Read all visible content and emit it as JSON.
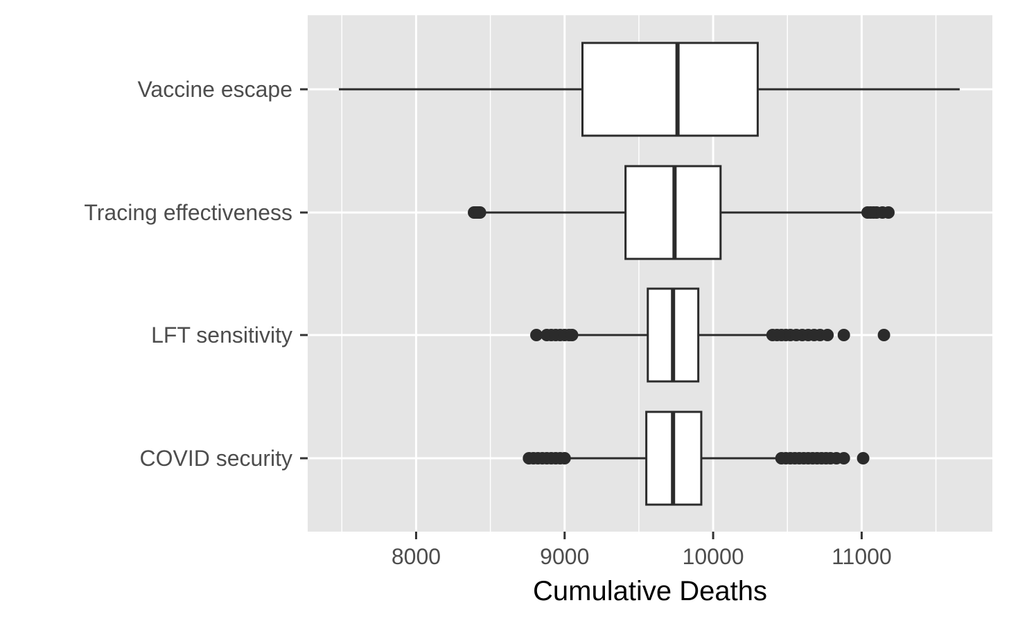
{
  "chart_data": {
    "type": "boxplot",
    "orientation": "horizontal",
    "xlabel": "Cumulative Deaths",
    "ylabel": "",
    "xlim": [
      7270,
      11880
    ],
    "x_ticks": [
      8000,
      9000,
      10000,
      11000
    ],
    "x_tick_labels": [
      "8000",
      "9000",
      "10000",
      "11000"
    ],
    "grid": true,
    "legend": "none",
    "colors": {
      "panel_background": "#e5e5e5",
      "grid_line": "#ffffff",
      "box_fill": "#ffffff",
      "box_stroke": "#2b2b2b",
      "outlier": "#2b2b2b"
    },
    "categories": [
      "Vaccine escape",
      "Tracing effectiveness",
      "LFT sensitivity",
      "COVID security"
    ],
    "series": [
      {
        "category": "Vaccine escape",
        "whisker_low": 7480,
        "q1": 9120,
        "median": 9760,
        "q3": 10300,
        "whisker_high": 11660,
        "outliers": []
      },
      {
        "category": "Tracing effectiveness",
        "whisker_low": 8440,
        "q1": 9410,
        "median": 9740,
        "q3": 10050,
        "whisker_high": 11030,
        "outliers": [
          8390,
          8400,
          8410,
          8420,
          8430,
          11040,
          11060,
          11080,
          11100,
          11140,
          11180
        ]
      },
      {
        "category": "LFT sensitivity",
        "whisker_low": 9070,
        "q1": 9560,
        "median": 9730,
        "q3": 9900,
        "whisker_high": 10390,
        "outliers": [
          8810,
          8880,
          8910,
          8940,
          8970,
          9000,
          9030,
          9050,
          10400,
          10430,
          10460,
          10490,
          10520,
          10560,
          10600,
          10640,
          10680,
          10720,
          10770,
          10880,
          11150
        ]
      },
      {
        "category": "COVID security",
        "whisker_low": 9010,
        "q1": 9550,
        "median": 9730,
        "q3": 9920,
        "whisker_high": 10450,
        "outliers": [
          8760,
          8790,
          8820,
          8850,
          8880,
          8910,
          8940,
          8970,
          9000,
          10460,
          10490,
          10520,
          10550,
          10580,
          10610,
          10640,
          10670,
          10700,
          10730,
          10760,
          10790,
          10830,
          10880,
          11010
        ]
      }
    ]
  }
}
